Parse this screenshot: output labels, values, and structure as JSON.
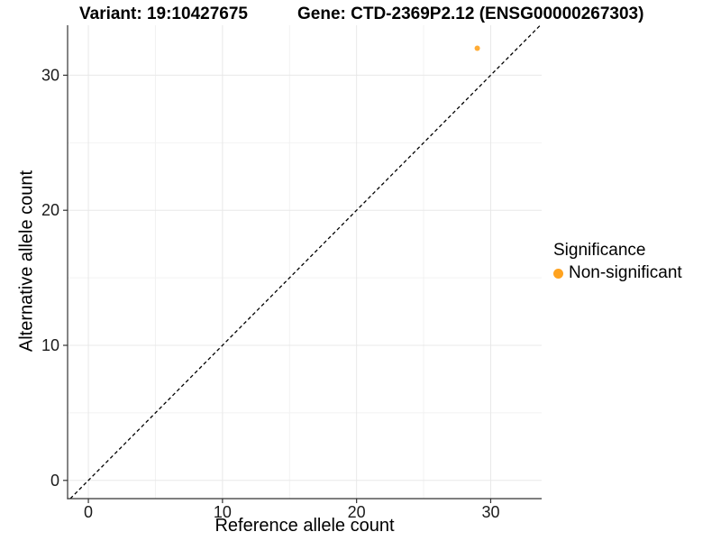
{
  "header": {
    "variant_title": "Variant: 19:10427675",
    "gene_title": "Gene: CTD-2369P2.12 (ENSG00000267303)"
  },
  "chart_data": {
    "type": "scatter",
    "xlabel": "Reference allele count",
    "ylabel": "Alternative allele count",
    "x_ticks": [
      0,
      10,
      20,
      30
    ],
    "y_ticks": [
      0,
      10,
      20,
      30
    ],
    "x_minor_ticks": [
      5,
      15,
      25
    ],
    "y_minor_ticks": [
      5,
      15,
      25
    ],
    "xlim": [
      -1.55,
      33.8
    ],
    "ylim": [
      -1.35,
      33.7
    ],
    "grid": "major+minor",
    "identity_line": {
      "style": "dashed",
      "slope": 1,
      "intercept": 0,
      "color": "#000000"
    },
    "series": [
      {
        "name": "Non-significant",
        "color": "#FFA320",
        "points": [
          {
            "x": 29,
            "y": 32
          }
        ]
      }
    ],
    "legend": {
      "title": "Significance",
      "position": "right",
      "items": [
        {
          "label": "Non-significant",
          "color": "#FFA320"
        }
      ]
    }
  },
  "style": {
    "axis_color": "#333333",
    "grid_major_color": "#E8E8E8",
    "grid_minor_color": "#F2F2F2",
    "background": "#FFFFFF"
  }
}
